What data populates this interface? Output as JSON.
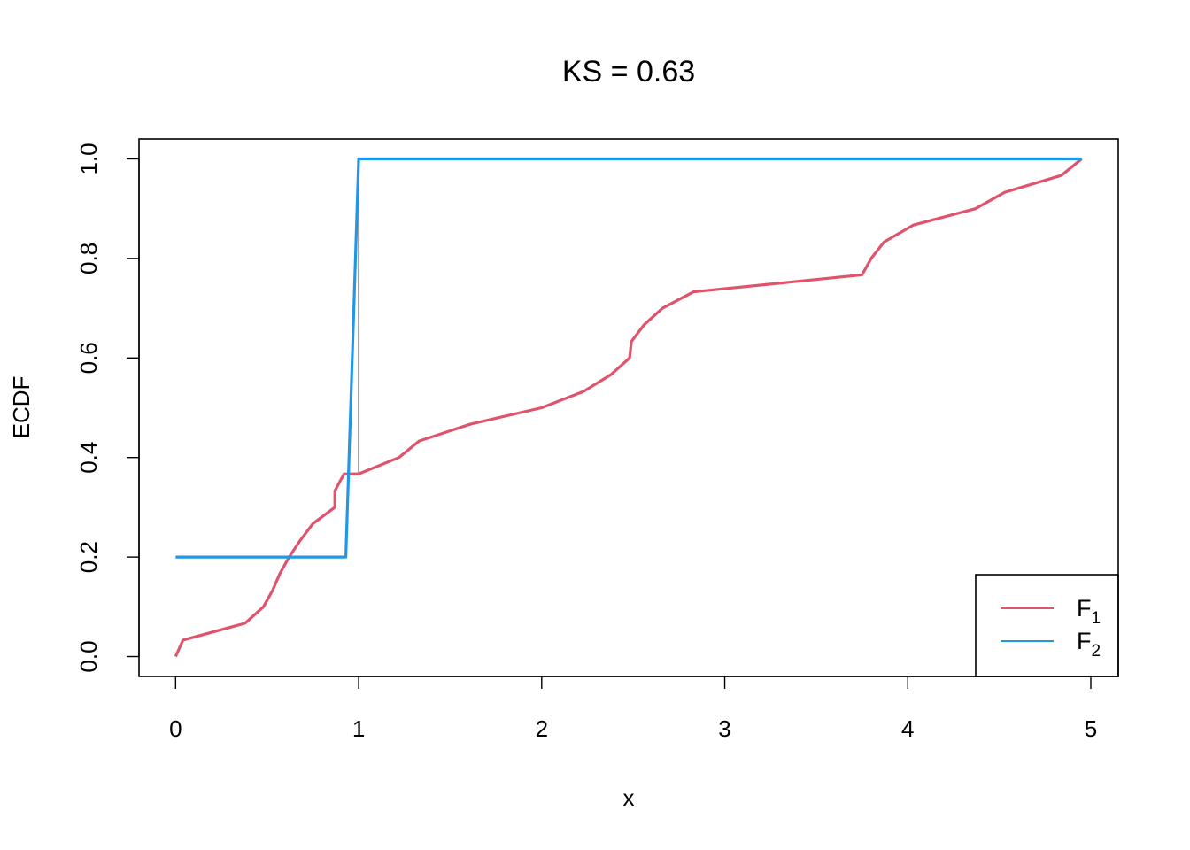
{
  "chart_data": {
    "type": "line",
    "title": "KS = 0.63",
    "xlabel": "x",
    "ylabel": "ECDF",
    "xlim": [
      -0.2,
      5.15
    ],
    "ylim": [
      -0.04,
      1.04
    ],
    "x_ticks": [
      0,
      1,
      2,
      3,
      4,
      5
    ],
    "x_tick_labels": [
      "0",
      "1",
      "2",
      "3",
      "4",
      "5"
    ],
    "y_ticks": [
      0.0,
      0.2,
      0.4,
      0.6,
      0.8,
      1.0
    ],
    "y_tick_labels": [
      "0.0",
      "0.2",
      "0.4",
      "0.6",
      "0.8",
      "1.0"
    ],
    "grid": false,
    "legend_position": "bottom-right",
    "series": [
      {
        "name": "F",
        "subscript": "1",
        "color": "#DF536B",
        "points": [
          [
            0.0,
            0.0
          ],
          [
            0.04,
            0.033
          ],
          [
            0.38,
            0.067
          ],
          [
            0.48,
            0.1
          ],
          [
            0.53,
            0.133
          ],
          [
            0.57,
            0.167
          ],
          [
            0.62,
            0.2
          ],
          [
            0.68,
            0.233
          ],
          [
            0.75,
            0.267
          ],
          [
            0.87,
            0.3
          ],
          [
            0.87,
            0.333
          ],
          [
            0.92,
            0.367
          ],
          [
            1.0,
            0.367
          ],
          [
            1.22,
            0.4
          ],
          [
            1.33,
            0.433
          ],
          [
            1.61,
            0.467
          ],
          [
            2.0,
            0.5
          ],
          [
            2.23,
            0.533
          ],
          [
            2.38,
            0.567
          ],
          [
            2.48,
            0.6
          ],
          [
            2.49,
            0.633
          ],
          [
            2.56,
            0.667
          ],
          [
            2.66,
            0.7
          ],
          [
            2.83,
            0.733
          ],
          [
            3.75,
            0.767
          ],
          [
            3.8,
            0.8
          ],
          [
            3.87,
            0.833
          ],
          [
            4.03,
            0.867
          ],
          [
            4.37,
            0.9
          ],
          [
            4.53,
            0.933
          ],
          [
            4.84,
            0.967
          ],
          [
            4.95,
            1.0
          ]
        ]
      },
      {
        "name": "F",
        "subscript": "2",
        "color": "#2297E6",
        "points": [
          [
            0.0,
            0.2
          ],
          [
            0.93,
            0.2
          ],
          [
            1.0,
            1.0
          ],
          [
            4.95,
            1.0
          ]
        ]
      }
    ],
    "ks_segment": {
      "x": 1.0,
      "y_from": 0.367,
      "y_to": 1.0,
      "color": "#9E9E9E"
    }
  }
}
